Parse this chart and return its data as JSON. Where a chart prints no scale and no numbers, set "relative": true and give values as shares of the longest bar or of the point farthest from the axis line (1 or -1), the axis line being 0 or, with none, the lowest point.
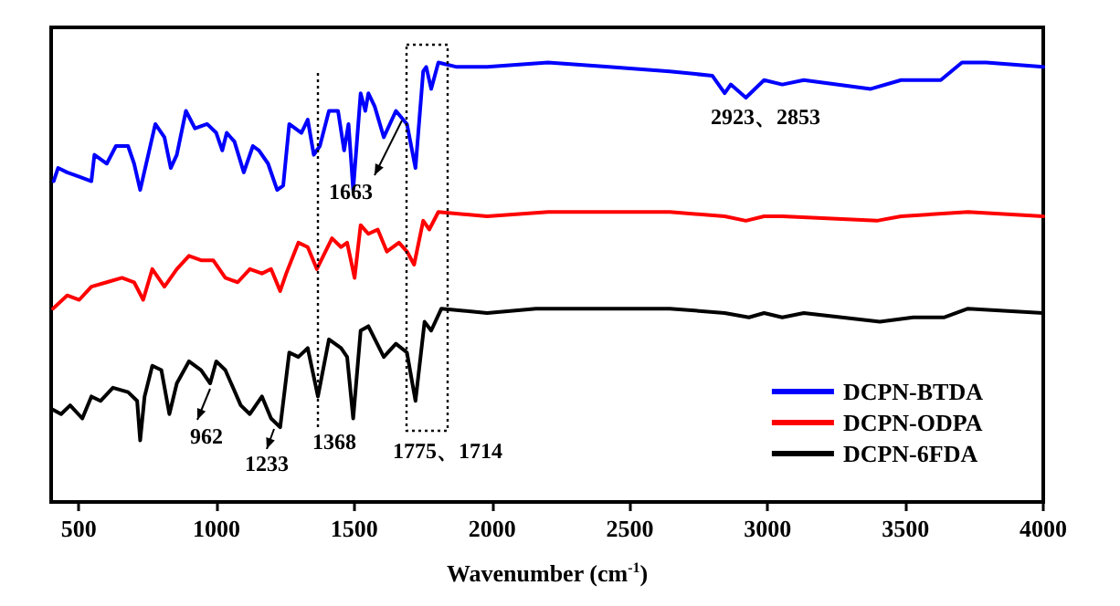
{
  "chart_data": {
    "type": "line",
    "relative": true,
    "xlabel": "Wavenumber (cm$^{-1}$)",
    "xlim": [
      400,
      4000
    ],
    "xticks": [
      500,
      1000,
      1500,
      2000,
      2500,
      3000,
      3500,
      4000
    ],
    "legend": "bottom right",
    "grid": false,
    "marker": "none",
    "line_style": "solid",
    "series": [
      {
        "name": "DCPN-BTDA",
        "color": "#0000ff",
        "x": [
          409,
          425,
          458,
          502,
          546,
          557,
          602,
          635,
          679,
          701,
          723,
          745,
          778,
          811,
          834,
          856,
          889,
          922,
          966,
          999,
          1021,
          1037,
          1065,
          1099,
          1132,
          1154,
          1187,
          1220,
          1242,
          1264,
          1308,
          1331,
          1353,
          1375,
          1408,
          1441,
          1463,
          1479,
          1496,
          1523,
          1540,
          1551,
          1574,
          1607,
          1651,
          1691,
          1722,
          1750,
          1761,
          1779,
          1805,
          1872,
          1982,
          2203,
          2424,
          2645,
          2799,
          2844,
          2866,
          2921,
          2987,
          3053,
          3131,
          3374,
          3484,
          3628,
          3705,
          3793,
          4000
        ],
        "values": [
          0.73,
          0.76,
          0.75,
          0.74,
          0.73,
          0.79,
          0.77,
          0.81,
          0.81,
          0.77,
          0.71,
          0.77,
          0.86,
          0.83,
          0.76,
          0.79,
          0.89,
          0.85,
          0.86,
          0.84,
          0.8,
          0.84,
          0.82,
          0.75,
          0.81,
          0.8,
          0.77,
          0.71,
          0.72,
          0.86,
          0.84,
          0.87,
          0.79,
          0.81,
          0.89,
          0.89,
          0.8,
          0.86,
          0.71,
          0.93,
          0.89,
          0.93,
          0.9,
          0.83,
          0.89,
          0.86,
          0.76,
          0.98,
          0.99,
          0.94,
          1.0,
          0.99,
          0.99,
          1.0,
          0.99,
          0.98,
          0.97,
          0.93,
          0.95,
          0.92,
          0.96,
          0.95,
          0.96,
          0.94,
          0.96,
          0.96,
          1.0,
          1.0,
          0.99
        ]
      },
      {
        "name": "DCPN-ODPA",
        "color": "#ff0000",
        "x": [
          407,
          458,
          502,
          546,
          602,
          657,
          701,
          734,
          767,
          811,
          856,
          900,
          944,
          988,
          1032,
          1077,
          1121,
          1165,
          1198,
          1231,
          1253,
          1297,
          1331,
          1364,
          1419,
          1452,
          1474,
          1501,
          1523,
          1551,
          1585,
          1618,
          1662,
          1691,
          1717,
          1750,
          1772,
          1805,
          1982,
          2203,
          2645,
          2844,
          2921,
          2987,
          3053,
          3396,
          3484,
          3727,
          4000
        ],
        "values": [
          0.44,
          0.47,
          0.46,
          0.49,
          0.5,
          0.51,
          0.5,
          0.46,
          0.53,
          0.49,
          0.53,
          0.56,
          0.55,
          0.55,
          0.51,
          0.5,
          0.53,
          0.52,
          0.53,
          0.48,
          0.52,
          0.59,
          0.58,
          0.53,
          0.6,
          0.58,
          0.59,
          0.51,
          0.63,
          0.61,
          0.62,
          0.57,
          0.59,
          0.57,
          0.54,
          0.64,
          0.62,
          0.66,
          0.65,
          0.66,
          0.66,
          0.65,
          0.64,
          0.65,
          0.65,
          0.64,
          0.65,
          0.66,
          0.65
        ]
      },
      {
        "name": "DCPN-6FDA",
        "color": "#000000",
        "x": [
          407,
          436,
          469,
          513,
          546,
          579,
          624,
          679,
          712,
          723,
          739,
          767,
          800,
          829,
          856,
          900,
          944,
          977,
          999,
          1032,
          1088,
          1121,
          1165,
          1198,
          1231,
          1264,
          1297,
          1331,
          1368,
          1408,
          1452,
          1474,
          1496,
          1523,
          1551,
          1607,
          1651,
          1691,
          1722,
          1755,
          1779,
          1816,
          1982,
          2159,
          2269,
          2445,
          2645,
          2844,
          2932,
          2987,
          3053,
          3131,
          3407,
          3528,
          3639,
          3727,
          4000
        ],
        "values": [
          0.21,
          0.2,
          0.22,
          0.19,
          0.24,
          0.23,
          0.26,
          0.25,
          0.23,
          0.14,
          0.24,
          0.31,
          0.3,
          0.2,
          0.27,
          0.32,
          0.3,
          0.27,
          0.32,
          0.3,
          0.22,
          0.2,
          0.24,
          0.19,
          0.17,
          0.34,
          0.33,
          0.35,
          0.24,
          0.37,
          0.35,
          0.33,
          0.19,
          0.39,
          0.4,
          0.33,
          0.36,
          0.34,
          0.23,
          0.41,
          0.39,
          0.44,
          0.43,
          0.44,
          0.44,
          0.44,
          0.44,
          0.43,
          0.42,
          0.43,
          0.42,
          0.43,
          0.41,
          0.42,
          0.42,
          0.44,
          0.43
        ]
      }
    ],
    "ref_lines": [
      {
        "axis": "x",
        "value": 1368,
        "line_style": "dotted",
        "color": "#000000"
      }
    ],
    "annotations": [
      "1663",
      "2923、2853",
      "962",
      "1233",
      "1368",
      "1775、1714"
    ]
  }
}
